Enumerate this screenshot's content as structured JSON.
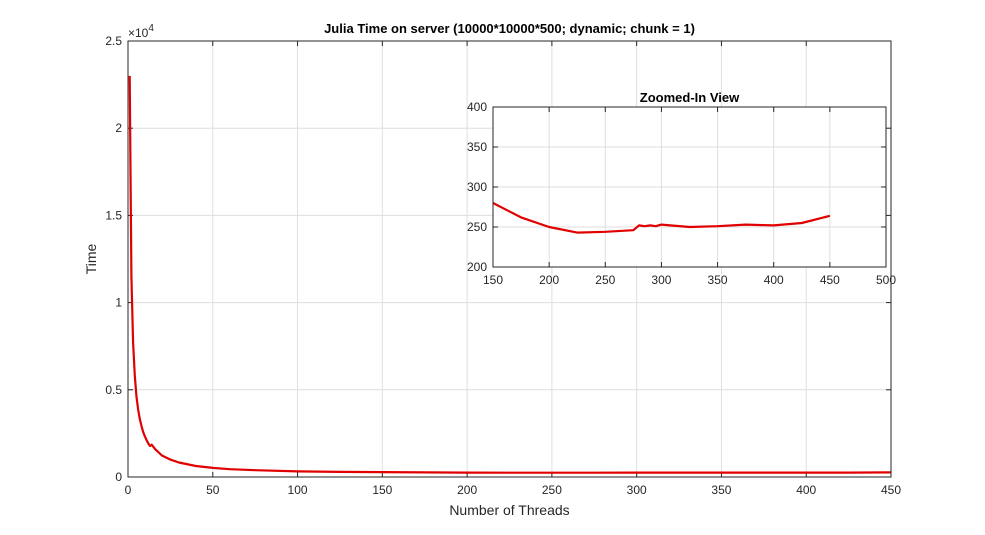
{
  "chart_data": [
    {
      "type": "line",
      "title": "Julia Time on server (10000*10000*500; dynamic; chunk = 1)",
      "xlabel": "Number of Threads",
      "ylabel": "Time",
      "y_exponent_label": "×10",
      "y_exponent": "4",
      "xlim": [
        0,
        450
      ],
      "ylim": [
        0,
        25000
      ],
      "xticks": [
        0,
        50,
        100,
        150,
        200,
        250,
        300,
        350,
        400,
        450
      ],
      "yticks": [
        0,
        5000,
        10000,
        15000,
        20000,
        25000
      ],
      "ytick_labels": [
        "0",
        "0.5",
        "1",
        "1.5",
        "2",
        "2.5"
      ],
      "grid": true,
      "series": [
        {
          "color": "#e00000",
          "x": [
            1,
            2,
            3,
            4,
            5,
            6,
            7,
            8,
            9,
            10,
            11,
            12,
            13,
            14,
            16,
            20,
            25,
            30,
            40,
            50,
            60,
            75,
            100,
            125,
            150,
            175,
            200,
            225,
            250,
            275,
            300,
            325,
            350,
            375,
            400,
            425,
            450
          ],
          "y": [
            23000,
            11500,
            7700,
            5800,
            4600,
            3850,
            3300,
            2900,
            2560,
            2310,
            2100,
            1920,
            1780,
            1850,
            1600,
            1230,
            1000,
            830,
            630,
            520,
            450,
            390,
            320,
            290,
            280,
            262,
            250,
            244,
            245,
            247,
            254,
            251,
            253,
            254,
            253,
            255,
            264
          ]
        }
      ]
    },
    {
      "type": "line",
      "title": "Zoomed-In View",
      "xlabel": "",
      "ylabel": "",
      "xlim": [
        150,
        500
      ],
      "ylim": [
        200,
        400
      ],
      "xticks": [
        150,
        200,
        250,
        300,
        350,
        400,
        450,
        500
      ],
      "yticks": [
        200,
        250,
        300,
        350,
        400
      ],
      "ytick_labels": [
        "200",
        "250",
        "300",
        "350",
        "400"
      ],
      "grid": true,
      "series": [
        {
          "color": "#e00000",
          "x": [
            150,
            175,
            200,
            225,
            250,
            275,
            280,
            285,
            290,
            295,
            300,
            325,
            350,
            375,
            400,
            425,
            450
          ],
          "y": [
            280,
            262,
            250,
            243,
            244,
            246,
            252,
            251,
            252,
            251,
            253,
            250,
            251,
            253,
            252,
            255,
            264
          ]
        }
      ]
    }
  ]
}
